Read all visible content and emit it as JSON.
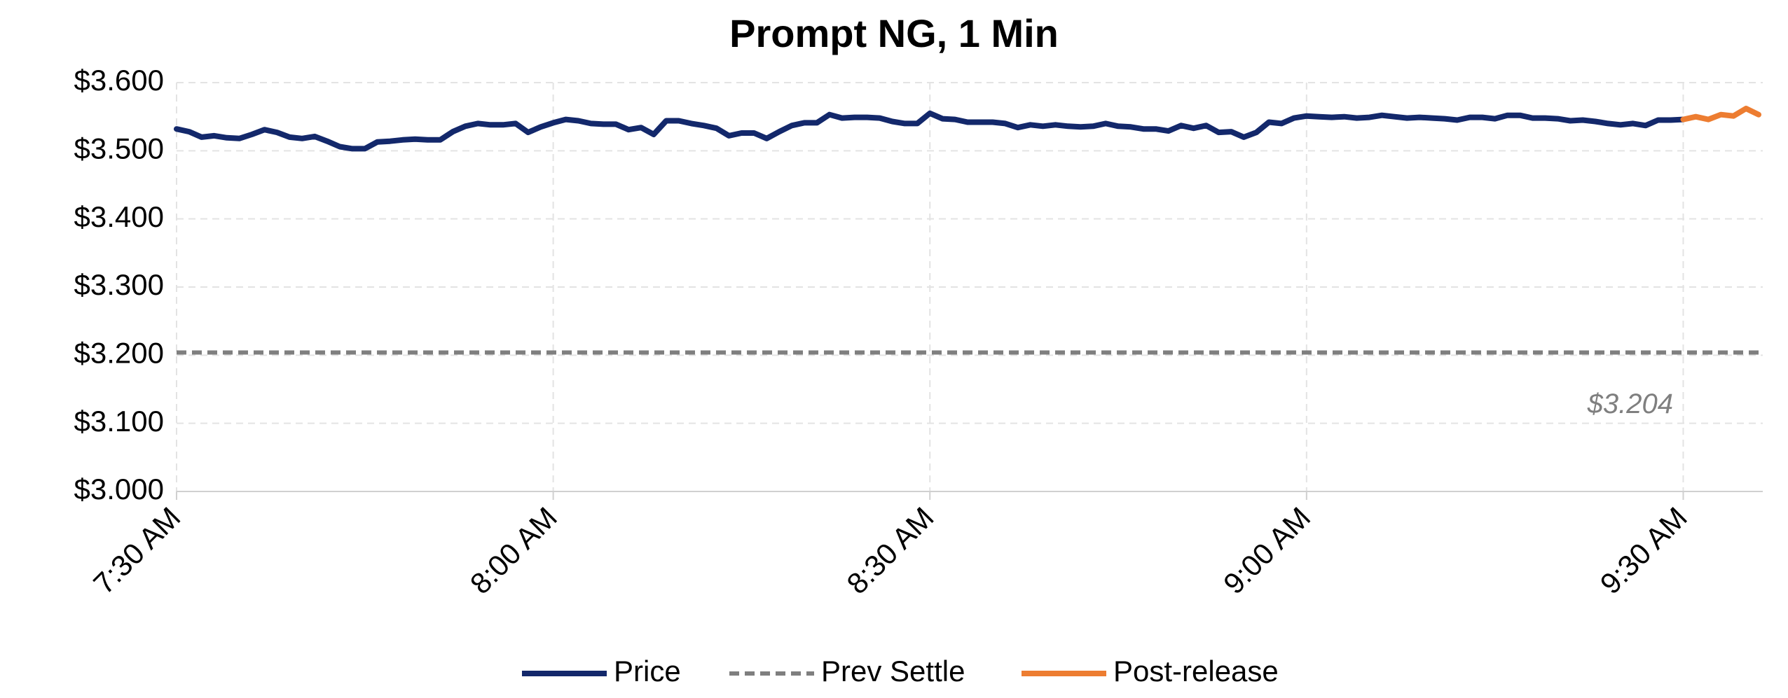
{
  "chart_data": {
    "type": "line",
    "title": "Prompt NG, 1 Min",
    "categories": [
      "7:30 AM",
      null,
      null,
      null,
      null,
      null,
      null,
      null,
      null,
      null,
      null,
      null,
      null,
      null,
      null,
      null,
      null,
      null,
      null,
      null,
      null,
      null,
      null,
      null,
      null,
      null,
      null,
      null,
      null,
      null,
      "8:00 AM",
      null,
      null,
      null,
      null,
      null,
      null,
      null,
      null,
      null,
      null,
      null,
      null,
      null,
      null,
      null,
      null,
      null,
      null,
      null,
      null,
      null,
      null,
      null,
      null,
      null,
      null,
      null,
      null,
      null,
      "8:30 AM",
      null,
      null,
      null,
      null,
      null,
      null,
      null,
      null,
      null,
      null,
      null,
      null,
      null,
      null,
      null,
      null,
      null,
      null,
      null,
      null,
      null,
      null,
      null,
      null,
      null,
      null,
      null,
      null,
      null,
      "9:00 AM",
      null,
      null,
      null,
      null,
      null,
      null,
      null,
      null,
      null,
      null,
      null,
      null,
      null,
      null,
      null,
      null,
      null,
      null,
      null,
      null,
      null,
      null,
      null,
      null,
      null,
      null,
      null,
      null,
      null,
      "9:30 AM",
      null,
      null,
      null,
      null,
      null,
      null
    ],
    "series": [
      {
        "name": "Price",
        "color": "#13286b",
        "values": [
          3.532,
          3.528,
          3.52,
          3.522,
          3.519,
          3.518,
          3.524,
          3.531,
          3.527,
          3.52,
          3.518,
          3.521,
          3.514,
          3.506,
          3.503,
          3.503,
          3.513,
          3.514,
          3.516,
          3.517,
          3.516,
          3.516,
          3.528,
          3.536,
          3.54,
          3.538,
          3.538,
          3.54,
          3.527,
          3.535,
          3.541,
          3.546,
          3.544,
          3.54,
          3.539,
          3.539,
          3.531,
          3.534,
          3.524,
          3.544,
          3.544,
          3.54,
          3.537,
          3.533,
          3.522,
          3.526,
          3.526,
          3.518,
          3.528,
          3.537,
          3.541,
          3.541,
          3.553,
          3.548,
          3.549,
          3.549,
          3.548,
          3.543,
          3.54,
          3.54,
          3.555,
          3.547,
          3.546,
          3.542,
          3.542,
          3.542,
          3.54,
          3.534,
          3.538,
          3.536,
          3.538,
          3.536,
          3.535,
          3.536,
          3.54,
          3.536,
          3.535,
          3.532,
          3.532,
          3.529,
          3.537,
          3.533,
          3.537,
          3.527,
          3.528,
          3.52,
          3.527,
          3.542,
          3.54,
          3.548,
          3.551,
          3.55,
          3.549,
          3.55,
          3.548,
          3.549,
          3.552,
          3.55,
          3.548,
          3.549,
          3.548,
          3.547,
          3.545,
          3.549,
          3.549,
          3.547,
          3.552,
          3.552,
          3.548,
          3.548,
          3.547,
          3.544,
          3.545,
          3.543,
          3.54,
          3.538,
          3.54,
          3.537,
          3.545,
          3.545,
          3.546,
          null,
          null,
          null,
          null,
          null,
          null
        ]
      },
      {
        "name": "Post-release",
        "color": "#ed7d31",
        "values": [
          null,
          null,
          null,
          null,
          null,
          null,
          null,
          null,
          null,
          null,
          null,
          null,
          null,
          null,
          null,
          null,
          null,
          null,
          null,
          null,
          null,
          null,
          null,
          null,
          null,
          null,
          null,
          null,
          null,
          null,
          null,
          null,
          null,
          null,
          null,
          null,
          null,
          null,
          null,
          null,
          null,
          null,
          null,
          null,
          null,
          null,
          null,
          null,
          null,
          null,
          null,
          null,
          null,
          null,
          null,
          null,
          null,
          null,
          null,
          null,
          null,
          null,
          null,
          null,
          null,
          null,
          null,
          null,
          null,
          null,
          null,
          null,
          null,
          null,
          null,
          null,
          null,
          null,
          null,
          null,
          null,
          null,
          null,
          null,
          null,
          null,
          null,
          null,
          null,
          null,
          null,
          null,
          null,
          null,
          null,
          null,
          null,
          null,
          null,
          null,
          null,
          null,
          null,
          null,
          null,
          null,
          null,
          null,
          null,
          null,
          null,
          null,
          null,
          null,
          null,
          null,
          null,
          null,
          null,
          null,
          3.546,
          3.55,
          3.546,
          3.553,
          3.551,
          3.562,
          3.553
        ]
      }
    ],
    "reference_lines": [
      {
        "name": "Prev Settle",
        "color": "#7f7f7f",
        "value": 3.204,
        "label": "$3.204"
      }
    ],
    "ylim": [
      3.0,
      3.6
    ],
    "yticks": [
      {
        "value": 3.0,
        "label": "$3.000"
      },
      {
        "value": 3.1,
        "label": "$3.100"
      },
      {
        "value": 3.2,
        "label": "$3.200"
      },
      {
        "value": 3.3,
        "label": "$3.300"
      },
      {
        "value": 3.4,
        "label": "$3.400"
      },
      {
        "value": 3.5,
        "label": "$3.500"
      },
      {
        "value": 3.6,
        "label": "$3.600"
      }
    ],
    "grid": true,
    "legend": "bottom"
  }
}
